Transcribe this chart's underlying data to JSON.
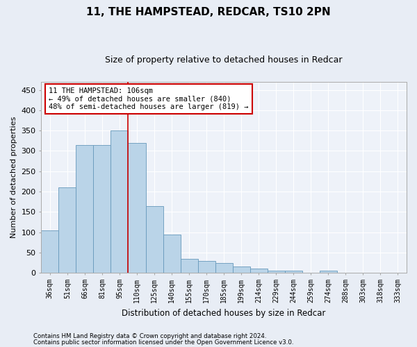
{
  "title": "11, THE HAMPSTEAD, REDCAR, TS10 2PN",
  "subtitle": "Size of property relative to detached houses in Redcar",
  "xlabel": "Distribution of detached houses by size in Redcar",
  "ylabel": "Number of detached properties",
  "categories": [
    "36sqm",
    "51sqm",
    "66sqm",
    "81sqm",
    "95sqm",
    "110sqm",
    "125sqm",
    "140sqm",
    "155sqm",
    "170sqm",
    "185sqm",
    "199sqm",
    "214sqm",
    "229sqm",
    "244sqm",
    "259sqm",
    "274sqm",
    "288sqm",
    "303sqm",
    "318sqm",
    "333sqm"
  ],
  "bar_heights": [
    105,
    210,
    315,
    315,
    350,
    320,
    165,
    95,
    35,
    30,
    25,
    15,
    10,
    5,
    5,
    0,
    5,
    0,
    0,
    0,
    0
  ],
  "bar_color": "#bad4e8",
  "bar_edge_color": "#6699bb",
  "marker_line_color": "#cc0000",
  "annotation_box_text": "11 THE HAMPSTEAD: 106sqm\n← 49% of detached houses are smaller (840)\n48% of semi-detached houses are larger (819) →",
  "annotation_box_color": "#cc0000",
  "ylim": [
    0,
    470
  ],
  "yticks": [
    0,
    50,
    100,
    150,
    200,
    250,
    300,
    350,
    400,
    450
  ],
  "footer_line1": "Contains HM Land Registry data © Crown copyright and database right 2024.",
  "footer_line2": "Contains public sector information licensed under the Open Government Licence v3.0.",
  "bg_color": "#e8edf5",
  "plot_bg_color": "#eef2f9",
  "grid_color": "#ffffff",
  "title_fontsize": 11,
  "subtitle_fontsize": 9,
  "xlabel_fontsize": 8.5,
  "ylabel_fontsize": 8
}
